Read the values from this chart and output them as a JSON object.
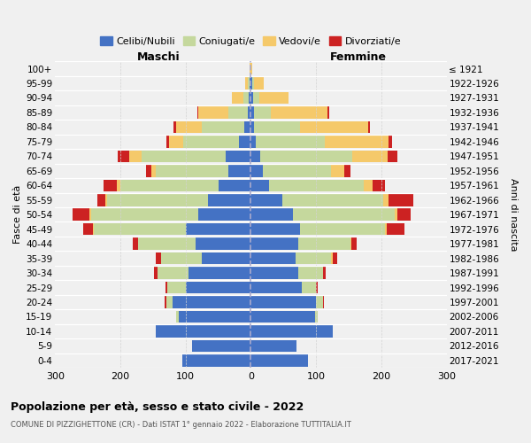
{
  "age_groups": [
    "0-4",
    "5-9",
    "10-14",
    "15-19",
    "20-24",
    "25-29",
    "30-34",
    "35-39",
    "40-44",
    "45-49",
    "50-54",
    "55-59",
    "60-64",
    "65-69",
    "70-74",
    "75-79",
    "80-84",
    "85-89",
    "90-94",
    "95-99",
    "100+"
  ],
  "birth_years": [
    "2017-2021",
    "2012-2016",
    "2007-2011",
    "2002-2006",
    "1997-2001",
    "1992-1996",
    "1987-1991",
    "1982-1986",
    "1977-1981",
    "1972-1976",
    "1967-1971",
    "1962-1966",
    "1957-1961",
    "1952-1956",
    "1947-1951",
    "1942-1946",
    "1937-1941",
    "1932-1936",
    "1927-1931",
    "1922-1926",
    "≤ 1921"
  ],
  "colors": {
    "celibe": "#4472C4",
    "coniugato": "#c5d89d",
    "vedovo": "#f5c96a",
    "divorziato": "#cc2222"
  },
  "maschi": {
    "celibe": [
      105,
      90,
      145,
      110,
      120,
      100,
      95,
      75,
      85,
      100,
      80,
      65,
      50,
      35,
      38,
      18,
      10,
      5,
      3,
      2,
      1
    ],
    "coniugato": [
      0,
      0,
      0,
      4,
      10,
      28,
      48,
      62,
      88,
      140,
      165,
      155,
      150,
      110,
      130,
      85,
      65,
      30,
      8,
      2,
      0
    ],
    "vedovo": [
      0,
      0,
      0,
      0,
      0,
      0,
      0,
      0,
      0,
      2,
      3,
      3,
      5,
      7,
      18,
      22,
      40,
      45,
      18,
      5,
      1
    ],
    "divorziato": [
      0,
      0,
      0,
      0,
      2,
      3,
      5,
      8,
      8,
      15,
      25,
      12,
      20,
      8,
      18,
      5,
      3,
      2,
      0,
      0,
      0
    ]
  },
  "femmine": {
    "nubile": [
      88,
      70,
      125,
      98,
      100,
      78,
      72,
      68,
      72,
      75,
      65,
      48,
      28,
      18,
      15,
      8,
      5,
      5,
      3,
      2,
      0
    ],
    "coniugata": [
      0,
      0,
      0,
      4,
      10,
      22,
      38,
      55,
      80,
      130,
      155,
      155,
      145,
      105,
      140,
      105,
      70,
      25,
      10,
      3,
      0
    ],
    "vedova": [
      0,
      0,
      0,
      0,
      0,
      0,
      0,
      2,
      2,
      3,
      5,
      8,
      14,
      20,
      55,
      98,
      105,
      88,
      45,
      15,
      2
    ],
    "divorziata": [
      0,
      0,
      0,
      0,
      2,
      2,
      5,
      8,
      8,
      28,
      20,
      38,
      18,
      10,
      15,
      5,
      3,
      2,
      0,
      0,
      0
    ]
  },
  "xlim": 300,
  "title": "Popolazione per età, sesso e stato civile - 2022",
  "subtitle": "COMUNE DI PIZZIGHETTONE (CR) - Dati ISTAT 1° gennaio 2022 - Elaborazione TUTTITALIA.IT",
  "ylabel_left": "Fasce di età",
  "ylabel_right": "Anni di nascita",
  "maschi_label": "Maschi",
  "femmine_label": "Femmine",
  "legend_labels": [
    "Celibi/Nubili",
    "Coniugati/e",
    "Vedovi/e",
    "Divorziati/e"
  ],
  "bg_color": "#f0f0f0"
}
